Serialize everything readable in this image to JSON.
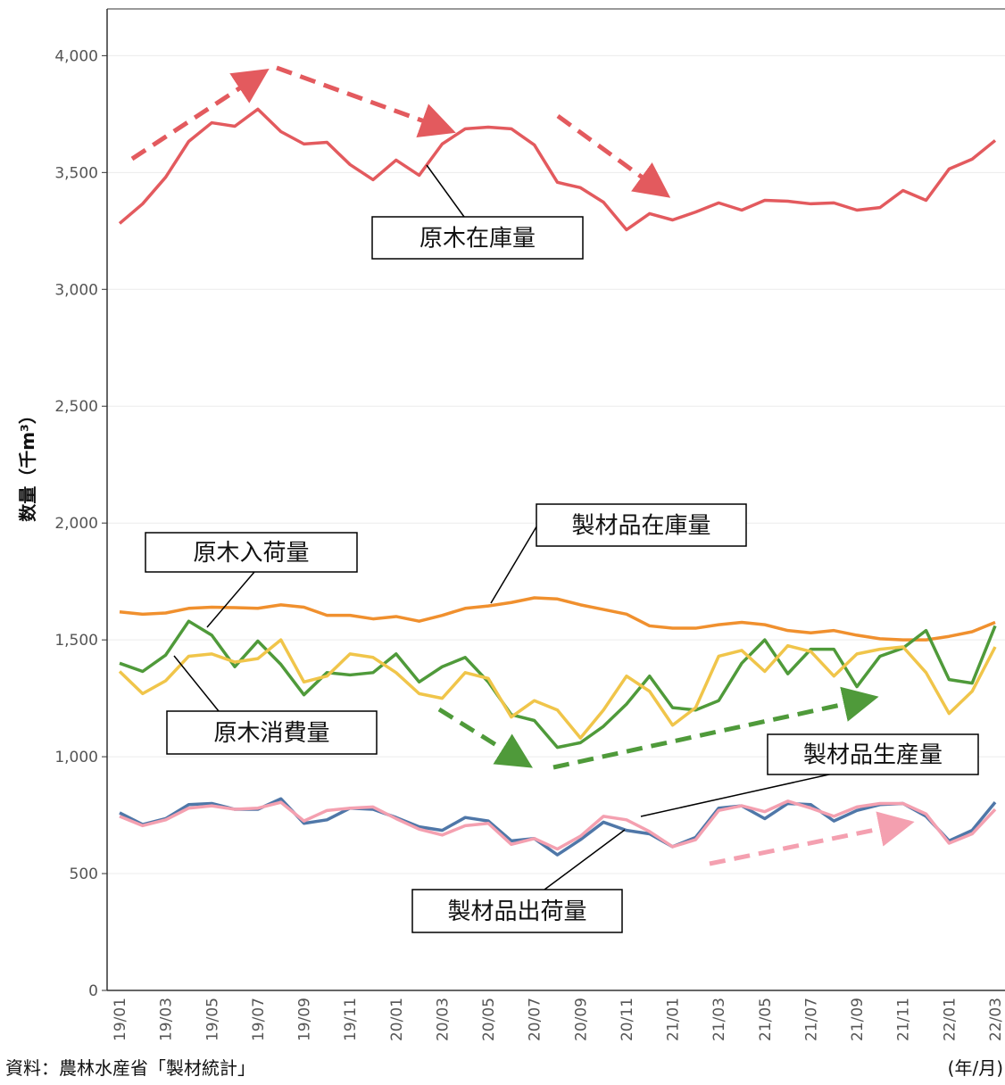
{
  "chart_data": {
    "type": "line",
    "y_label": "数量（千m³）",
    "source": "資料：農林水産省「製材統計」",
    "x_unit": "(年/月)",
    "categories": [
      "19/01",
      null,
      "19/03",
      null,
      "19/05",
      null,
      "19/07",
      null,
      "19/09",
      null,
      "19/11",
      null,
      "20/01",
      null,
      "20/03",
      null,
      "20/05",
      null,
      "20/07",
      null,
      "20/09",
      null,
      "20/11",
      null,
      "21/01",
      null,
      "21/03",
      null,
      "21/05",
      null,
      "21/07",
      null,
      "21/09",
      null,
      "21/11",
      null,
      "22/01",
      null,
      "22/03"
    ],
    "ylim": [
      0,
      4200
    ],
    "yticks": [
      0,
      500,
      {
        "value": 1000,
        "label": "1,000"
      },
      {
        "value": 1500,
        "label": "1,500"
      },
      {
        "value": 2000,
        "label": "2,000"
      },
      {
        "value": 2500,
        "label": "2,500"
      },
      {
        "value": 3000,
        "label": "3,000"
      },
      {
        "value": 3500,
        "label": "3,500"
      },
      {
        "value": 4000,
        "label": "4,000"
      }
    ],
    "grid": true,
    "series": [
      {
        "name": "原木在庫量",
        "color": "#e35a5e",
        "values": [
          3282,
          3366,
          3480,
          3633,
          3713,
          3698,
          3771,
          3675,
          3622,
          3629,
          3534,
          3469,
          3553,
          3488,
          3622,
          3687,
          3694,
          3687,
          3618,
          3458,
          3435,
          3373,
          3255,
          3324,
          3297,
          3331,
          3370,
          3339,
          3381,
          3377,
          3366,
          3370,
          3339,
          3350,
          3423,
          3381,
          3515,
          3557,
          3637
        ]
      },
      {
        "name": "製材品在庫量",
        "color": "#f0902e",
        "values": [
          1620,
          1610,
          1615,
          1635,
          1640,
          1638,
          1635,
          1650,
          1640,
          1605,
          1605,
          1590,
          1600,
          1580,
          1605,
          1635,
          1645,
          1660,
          1680,
          1675,
          1650,
          1630,
          1610,
          1560,
          1550,
          1550,
          1565,
          1575,
          1565,
          1540,
          1530,
          1540,
          1520,
          1505,
          1500,
          1500,
          1515,
          1535,
          1575
        ]
      },
      {
        "name": "原木入荷量",
        "color": "#4f9a3a",
        "values": [
          1400,
          1365,
          1435,
          1580,
          1520,
          1385,
          1495,
          1395,
          1265,
          1360,
          1350,
          1360,
          1440,
          1320,
          1385,
          1425,
          1320,
          1180,
          1155,
          1040,
          1060,
          1130,
          1225,
          1345,
          1210,
          1200,
          1240,
          1400,
          1500,
          1355,
          1460,
          1460,
          1300,
          1430,
          1465,
          1540,
          1330,
          1315,
          1560
        ]
      },
      {
        "name": "原木消費量",
        "color": "#f0c54a",
        "values": [
          1365,
          1270,
          1325,
          1430,
          1440,
          1405,
          1420,
          1500,
          1320,
          1345,
          1440,
          1425,
          1360,
          1270,
          1250,
          1360,
          1335,
          1170,
          1240,
          1200,
          1080,
          1200,
          1345,
          1280,
          1135,
          1210,
          1430,
          1455,
          1365,
          1475,
          1450,
          1345,
          1440,
          1460,
          1470,
          1360,
          1185,
          1280,
          1470
        ]
      },
      {
        "name": "製材品生産量",
        "color": "#4f77a8",
        "values": [
          760,
          710,
          735,
          795,
          800,
          775,
          775,
          820,
          715,
          730,
          780,
          775,
          740,
          700,
          685,
          740,
          725,
          640,
          650,
          580,
          645,
          720,
          685,
          670,
          615,
          655,
          780,
          790,
          735,
          800,
          795,
          725,
          770,
          795,
          800,
          745,
          640,
          685,
          805
        ]
      },
      {
        "name": "製材品出荷量",
        "color": "#f4a0b0",
        "values": [
          745,
          705,
          730,
          780,
          790,
          775,
          780,
          805,
          725,
          770,
          780,
          785,
          735,
          690,
          665,
          705,
          715,
          625,
          650,
          605,
          660,
          745,
          730,
          680,
          615,
          645,
          770,
          790,
          765,
          810,
          780,
          745,
          785,
          800,
          800,
          755,
          630,
          670,
          775
        ]
      }
    ]
  }
}
